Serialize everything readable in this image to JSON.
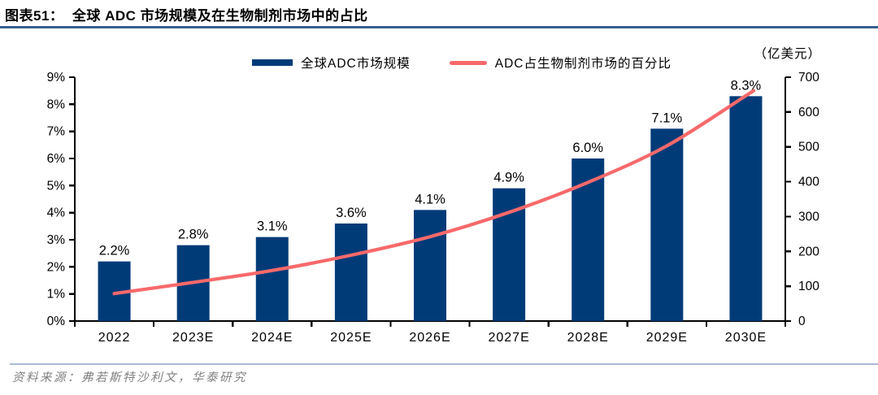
{
  "page": {
    "title": "图表51：  全球 ADC 市场规模及在生物制剂市场中的占比",
    "source_note": "资料来源：弗若斯特沙利文，华泰研究"
  },
  "legend": {
    "items": [
      {
        "swatch": "bar",
        "label": "全球ADC市场规模",
        "color": "#003B78"
      },
      {
        "swatch": "line",
        "label": "ADC占生物制剂市场的百分比",
        "color": "#F8696B"
      }
    ],
    "right_axis_unit": "（亿美元）"
  },
  "colors": {
    "bar": "#003B78",
    "line": "#F8696B",
    "axis": "#000000",
    "text": "#000000",
    "title_underline": "#376092",
    "source_divider": "#A9BAD1",
    "source_text": "#808080"
  },
  "chart_data": {
    "type": "combo",
    "title": "全球 ADC 市场规模及在生物制剂市场中的占比",
    "categories": [
      "2022",
      "2023E",
      "2024E",
      "2025E",
      "2026E",
      "2027E",
      "2028E",
      "2029E",
      "2030E"
    ],
    "series": [
      {
        "name": "全球ADC市场规模",
        "rendered_as": "bar",
        "axis": "left",
        "unit": "%",
        "values": [
          2.2,
          2.8,
          3.1,
          3.6,
          4.1,
          4.9,
          6.0,
          7.1,
          8.3
        ],
        "data_labels": [
          "2.2%",
          "2.8%",
          "3.1%",
          "3.6%",
          "4.1%",
          "4.9%",
          "6.0%",
          "7.1%",
          "8.3%"
        ]
      },
      {
        "name": "ADC占生物制剂市场的百分比",
        "rendered_as": "line",
        "axis": "right",
        "unit": "亿美元",
        "estimated": true,
        "values": [
          79,
          111,
          145,
          189,
          242,
          312,
          398,
          503,
          647
        ]
      }
    ],
    "left_axis": {
      "min": 0,
      "max": 9,
      "step": 1,
      "tick_labels": [
        "0%",
        "1%",
        "2%",
        "3%",
        "4%",
        "5%",
        "6%",
        "7%",
        "8%",
        "9%"
      ]
    },
    "right_axis": {
      "min": 0,
      "max": 700,
      "step": 100,
      "tick_labels": [
        "0",
        "100",
        "200",
        "300",
        "400",
        "500",
        "600",
        "700"
      ],
      "unit": "（亿美元）"
    },
    "grid": false,
    "legend_position": "top-center"
  }
}
